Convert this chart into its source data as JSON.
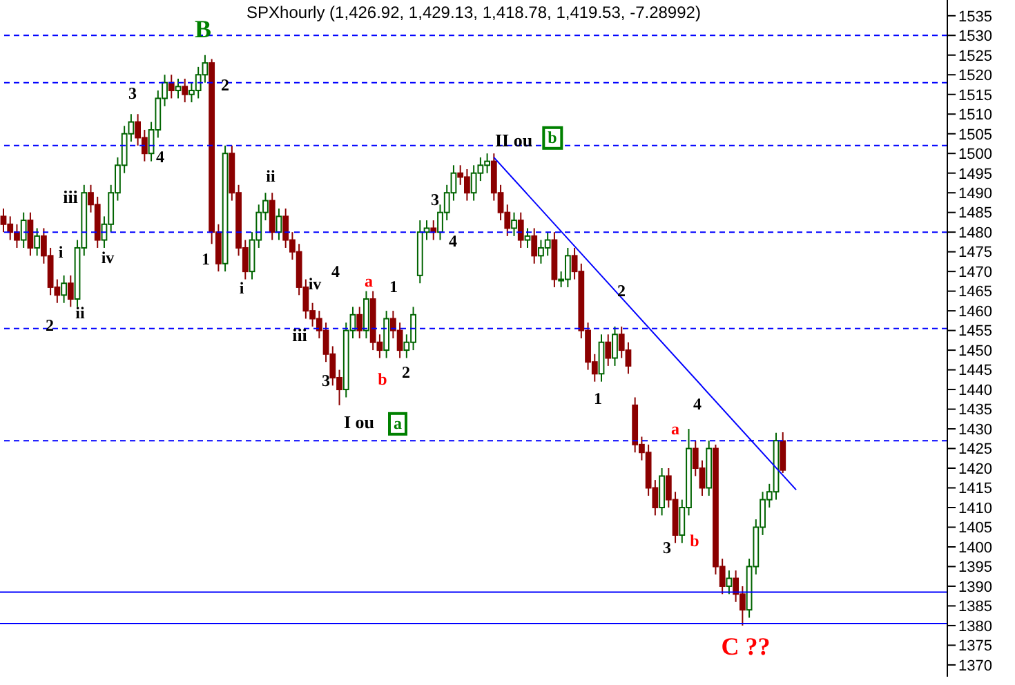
{
  "chart_data": {
    "type": "candlestick",
    "title": "SPXhourly (1,426.92, 1,429.13, 1,418.78, 1,419.53, -7.28992)",
    "categories": [
      null,
      null,
      null,
      null,
      null,
      null,
      null,
      null,
      null,
      null,
      null,
      null,
      null,
      null,
      null,
      null,
      null,
      null,
      null,
      null,
      null,
      null,
      null,
      null,
      null,
      null,
      null,
      null,
      null,
      null,
      null,
      null,
      null,
      null,
      null,
      null,
      null,
      null,
      null,
      null,
      null,
      null,
      null,
      null,
      null,
      null,
      null,
      null,
      null,
      null,
      null,
      null,
      null,
      null,
      null,
      null,
      null,
      null,
      null,
      null,
      null,
      null,
      null,
      null,
      null,
      null,
      null,
      null,
      null,
      null,
      null,
      null,
      null,
      null,
      null,
      null,
      null,
      null,
      null,
      null,
      null,
      null,
      null,
      null,
      null,
      null,
      null,
      null,
      null,
      null,
      null,
      null,
      null,
      null,
      null,
      null,
      null,
      null,
      null,
      null,
      null,
      null,
      null,
      null,
      null,
      null,
      null,
      null,
      null,
      null,
      null,
      null,
      null,
      null,
      null,
      null,
      null,
      null,
      null,
      null,
      null,
      null,
      null,
      null,
      null,
      null,
      null,
      null,
      null,
      null,
      null,
      null,
      null,
      null,
      null,
      null,
      null,
      null,
      null,
      null,
      null
    ],
    "ohlc": [
      [
        1484,
        1486,
        1480,
        1482
      ],
      [
        1482,
        1484,
        1478,
        1480
      ],
      [
        1480,
        1482,
        1476,
        1478
      ],
      [
        1478,
        1485,
        1476,
        1483
      ],
      [
        1483,
        1485,
        1474,
        1476
      ],
      [
        1476,
        1481,
        1474,
        1479
      ],
      [
        1479,
        1481,
        1472,
        1474
      ],
      [
        1474,
        1476,
        1464,
        1466
      ],
      [
        1466,
        1468,
        1462,
        1464
      ],
      [
        1464,
        1469,
        1462,
        1467
      ],
      [
        1467,
        1469,
        1461,
        1463
      ],
      [
        1463,
        1478,
        1461,
        1476
      ],
      [
        1476,
        1492,
        1474,
        1490
      ],
      [
        1490,
        1492,
        1485,
        1487
      ],
      [
        1487,
        1489,
        1476,
        1478
      ],
      [
        1478,
        1484,
        1476,
        1482
      ],
      [
        1482,
        1492,
        1480,
        1490
      ],
      [
        1490,
        1499,
        1488,
        1497
      ],
      [
        1497,
        1507,
        1495,
        1505
      ],
      [
        1505,
        1510,
        1503,
        1508
      ],
      [
        1508,
        1510,
        1502,
        1504
      ],
      [
        1504,
        1506,
        1498,
        1500
      ],
      [
        1500,
        1508,
        1498,
        1506
      ],
      [
        1506,
        1516,
        1504,
        1514
      ],
      [
        1514,
        1520,
        1512,
        1518
      ],
      [
        1518,
        1520,
        1514,
        1516
      ],
      [
        1516,
        1519,
        1514,
        1517
      ],
      [
        1517,
        1519,
        1513,
        1515
      ],
      [
        1515,
        1518,
        1513,
        1516
      ],
      [
        1516,
        1522,
        1514,
        1520
      ],
      [
        1520,
        1525,
        1518,
        1523
      ],
      [
        1523,
        1524,
        1477,
        1480
      ],
      [
        1480,
        1482,
        1470,
        1472
      ],
      [
        1472,
        1502,
        1470,
        1500
      ],
      [
        1500,
        1502,
        1488,
        1490
      ],
      [
        1490,
        1492,
        1474,
        1476
      ],
      [
        1476,
        1478,
        1468,
        1470
      ],
      [
        1470,
        1480,
        1468,
        1478
      ],
      [
        1478,
        1487,
        1476,
        1485
      ],
      [
        1485,
        1490,
        1483,
        1488
      ],
      [
        1488,
        1490,
        1478,
        1480
      ],
      [
        1480,
        1486,
        1478,
        1484
      ],
      [
        1484,
        1486,
        1476,
        1478
      ],
      [
        1478,
        1480,
        1473,
        1475
      ],
      [
        1475,
        1477,
        1464,
        1466
      ],
      [
        1466,
        1468,
        1458,
        1460
      ],
      [
        1460,
        1462,
        1456,
        1458
      ],
      [
        1458,
        1460,
        1453,
        1455
      ],
      [
        1455,
        1457,
        1447,
        1449
      ],
      [
        1449,
        1451,
        1441,
        1443
      ],
      [
        1443,
        1445,
        1436,
        1440
      ],
      [
        1440,
        1457,
        1438,
        1455
      ],
      [
        1455,
        1461,
        1453,
        1459
      ],
      [
        1459,
        1461,
        1453,
        1455
      ],
      [
        1455,
        1465,
        1453,
        1463
      ],
      [
        1463,
        1465,
        1450,
        1452
      ],
      [
        1452,
        1454,
        1448,
        1450
      ],
      [
        1450,
        1460,
        1448,
        1458
      ],
      [
        1458,
        1460,
        1453,
        1455
      ],
      [
        1455,
        1457,
        1448,
        1450
      ],
      [
        1450,
        1454,
        1448,
        1452
      ],
      [
        1452,
        1461,
        1450,
        1459
      ],
      [
        1469,
        1483,
        1467,
        1480
      ],
      [
        1480,
        1483,
        1478,
        1481
      ],
      [
        1481,
        1483,
        1478,
        1480
      ],
      [
        1480,
        1487,
        1478,
        1485
      ],
      [
        1485,
        1492,
        1483,
        1490
      ],
      [
        1490,
        1497,
        1488,
        1495
      ],
      [
        1495,
        1497,
        1492,
        1494
      ],
      [
        1494,
        1496,
        1488,
        1490
      ],
      [
        1490,
        1497,
        1488,
        1495
      ],
      [
        1495,
        1499,
        1493,
        1497
      ],
      [
        1497,
        1500,
        1495,
        1498
      ],
      [
        1498,
        1500,
        1488,
        1490
      ],
      [
        1490,
        1492,
        1483,
        1485
      ],
      [
        1485,
        1487,
        1479,
        1481
      ],
      [
        1481,
        1485,
        1479,
        1483
      ],
      [
        1483,
        1485,
        1476,
        1478
      ],
      [
        1478,
        1481,
        1476,
        1479
      ],
      [
        1479,
        1481,
        1472,
        1474
      ],
      [
        1474,
        1478,
        1472,
        1476
      ],
      [
        1476,
        1480,
        1474,
        1478
      ],
      [
        1478,
        1480,
        1466,
        1468
      ],
      [
        1468,
        1470,
        1466,
        1468
      ],
      [
        1468,
        1476,
        1466,
        1474
      ],
      [
        1474,
        1476,
        1468,
        1470
      ],
      [
        1470,
        1472,
        1453,
        1455
      ],
      [
        1455,
        1457,
        1445,
        1447
      ],
      [
        1447,
        1449,
        1442,
        1444
      ],
      [
        1444,
        1454,
        1442,
        1452
      ],
      [
        1452,
        1454,
        1446,
        1448
      ],
      [
        1448,
        1456,
        1446,
        1454
      ],
      [
        1454,
        1456,
        1448,
        1450
      ],
      [
        1450,
        1452,
        1444,
        1446
      ],
      [
        1436,
        1438,
        1424,
        1426
      ],
      [
        1426,
        1428,
        1422,
        1424
      ],
      [
        1424,
        1426,
        1413,
        1415
      ],
      [
        1415,
        1417,
        1408,
        1410
      ],
      [
        1410,
        1420,
        1408,
        1418
      ],
      [
        1418,
        1420,
        1410,
        1412
      ],
      [
        1412,
        1414,
        1401,
        1403
      ],
      [
        1403,
        1412,
        1401,
        1410
      ],
      [
        1410,
        1430,
        1408,
        1425
      ],
      [
        1425,
        1427,
        1418,
        1420
      ],
      [
        1420,
        1422,
        1413,
        1415
      ],
      [
        1415,
        1427,
        1413,
        1425
      ],
      [
        1425,
        1426,
        1393,
        1395
      ],
      [
        1395,
        1397,
        1388,
        1390
      ],
      [
        1390,
        1394,
        1388,
        1392
      ],
      [
        1392,
        1394,
        1386,
        1388
      ],
      [
        1388,
        1390,
        1380,
        1384
      ],
      [
        1384,
        1397,
        1382,
        1395
      ],
      [
        1395,
        1407,
        1393,
        1405
      ],
      [
        1405,
        1414,
        1403,
        1412
      ],
      [
        1412,
        1416,
        1410,
        1414
      ],
      [
        1414,
        1429,
        1412,
        1427
      ],
      [
        1426.92,
        1429.13,
        1418.78,
        1419.53
      ],
      null,
      null,
      null,
      null,
      null,
      null,
      null,
      null,
      null,
      null,
      null,
      null,
      null,
      null,
      null,
      null,
      null,
      null,
      null,
      null,
      null,
      null,
      null,
      null
    ],
    "series": [
      {
        "type": "line",
        "color": "#0000ff",
        "values": [
          null,
          null,
          null,
          null,
          null,
          null,
          null,
          null,
          null,
          null,
          null,
          null,
          null,
          null,
          null,
          null,
          null,
          null,
          null,
          null,
          null,
          null,
          null,
          null,
          null,
          null,
          null,
          null,
          null,
          null,
          null,
          null,
          null,
          null,
          null,
          null,
          null,
          null,
          null,
          null,
          null,
          null,
          null,
          null,
          null,
          null,
          null,
          null,
          null,
          null,
          null,
          null,
          null,
          null,
          null,
          null,
          null,
          null,
          null,
          null,
          null,
          null,
          null,
          null,
          null,
          null,
          null,
          null,
          null,
          null,
          null,
          null,
          null,
          1499,
          null,
          null,
          null,
          null,
          null,
          null,
          null,
          null,
          null,
          null,
          null,
          null,
          null,
          null,
          null,
          null,
          null,
          null,
          null,
          null,
          null,
          null,
          null,
          null,
          null,
          null,
          null,
          null,
          null,
          null,
          null,
          null,
          null,
          null,
          null,
          null,
          null,
          null,
          null,
          null,
          null,
          null,
          null,
          null,
          1414.5,
          null,
          null,
          null,
          null,
          null,
          null,
          null,
          null,
          null,
          null,
          null,
          null,
          null,
          null,
          null,
          null,
          null,
          null,
          null,
          null,
          null,
          null
        ]
      }
    ],
    "ylim": [
      1367,
      1539
    ],
    "yticks": [
      1370,
      1375,
      1380,
      1385,
      1390,
      1395,
      1400,
      1405,
      1410,
      1415,
      1420,
      1425,
      1430,
      1435,
      1440,
      1445,
      1450,
      1455,
      1460,
      1465,
      1470,
      1475,
      1480,
      1485,
      1490,
      1495,
      1500,
      1505,
      1510,
      1515,
      1520,
      1525,
      1530,
      1535
    ],
    "tick_labels": "y",
    "ref_lines": [
      {
        "axis": "y",
        "value": 1530,
        "color": "#0000ff",
        "line_style": "dashed"
      },
      {
        "axis": "y",
        "value": 1518,
        "color": "#0000ff",
        "line_style": "dashed"
      },
      {
        "axis": "y",
        "value": 1502,
        "color": "#0000ff",
        "line_style": "dashed"
      },
      {
        "axis": "y",
        "value": 1480,
        "color": "#0000ff",
        "line_style": "dashed"
      },
      {
        "axis": "y",
        "value": 1455.5,
        "color": "#0000ff",
        "line_style": "dashed"
      },
      {
        "axis": "y",
        "value": 1427,
        "color": "#0000ff",
        "line_style": "dashed"
      },
      {
        "axis": "y",
        "value": 1388.5,
        "color": "#0000ff",
        "line_style": "solid"
      },
      {
        "axis": "y",
        "value": 1380.5,
        "color": "#0000ff",
        "line_style": "solid"
      }
    ],
    "annotations": [
      "B",
      "2",
      "3",
      "4",
      "iii",
      "i",
      "iv",
      "ii",
      "2",
      "1",
      "ii",
      "i",
      "iv",
      "iii",
      "3",
      "4",
      "a",
      "1",
      "b",
      "2",
      "I ou",
      "a",
      "3",
      "4",
      "II ou",
      "b",
      "2",
      "1",
      "4",
      "a",
      "3",
      "b",
      "C ??"
    ]
  }
}
